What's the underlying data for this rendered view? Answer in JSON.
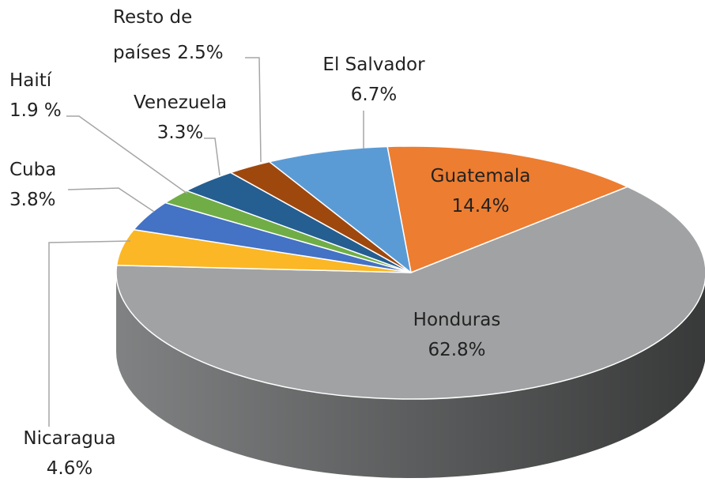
{
  "chart_data": {
    "type": "pie",
    "categories": [
      "Guatemala",
      "Honduras",
      "Nicaragua",
      "Cuba",
      "Haití",
      "Venezuela",
      "Resto de países",
      "El Salvador"
    ],
    "values": [
      14.4,
      62.8,
      4.6,
      3.8,
      1.9,
      3.3,
      2.5,
      6.7
    ],
    "value_labels": [
      "14.4%",
      "62.8%",
      "4.6%",
      "3.8%",
      "1.9 %",
      "3.3%",
      "2.5%",
      "6.7%"
    ],
    "colors": [
      "#ed7d31",
      "#a0a2a3",
      "#fbb725",
      "#4472c4",
      "#70ad47",
      "#255e91",
      "#9e480e",
      "#5b9bd5"
    ]
  }
}
